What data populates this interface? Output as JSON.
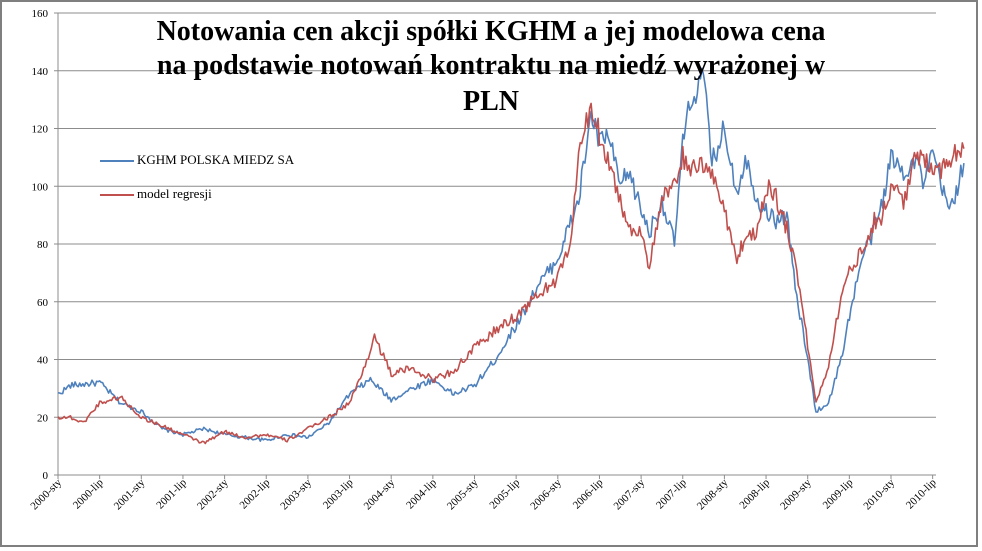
{
  "chart_data": {
    "type": "line",
    "title_lines": [
      "Notowania cen akcji spółki KGHM a jej modelowa cena",
      "na podstawie notowań kontraktu na miedź wyrażonej  w",
      "PLN"
    ],
    "ylim": [
      0,
      160
    ],
    "yticks": [
      "0",
      "20",
      "40",
      "60",
      "80",
      "100",
      "120",
      "140",
      "160"
    ],
    "grid": true,
    "xticks": [
      "2000-sty",
      "2000-lip",
      "2001-sty",
      "2001-lip",
      "2002-sty",
      "2002-lip",
      "2003-sty",
      "2003-lip",
      "2004-sty",
      "2004-lip",
      "2005-sty",
      "2005-lip",
      "2006-sty",
      "2006-lip",
      "2007-sty",
      "2007-lip",
      "2008-sty",
      "2008-lip",
      "2009-sty",
      "2009-lip",
      "2010-sty",
      "2010-lip"
    ],
    "legend_position": "upper-left",
    "series": [
      {
        "name": "KGHM POLSKA MIEDZ SA",
        "color": "#4f81bd",
        "t": [
          0,
          0.3,
          1,
          1.5,
          2,
          2.5,
          3,
          3.5,
          4,
          4.5,
          5,
          5.5,
          6,
          6.5,
          7,
          7.5,
          8,
          8.5,
          9,
          9.5,
          10,
          10.5,
          11,
          11.5,
          12,
          12.2,
          12.5,
          12.8,
          13,
          13.2,
          13.5,
          13.7,
          14,
          14.2,
          14.5,
          14.8,
          15,
          15.2,
          15.5,
          15.7,
          16,
          16.3,
          16.5,
          16.8,
          17,
          17.2,
          17.5,
          17.7,
          18,
          18.2,
          18.5,
          18.8,
          19,
          19.3,
          19.6,
          19.8,
          20,
          20.3,
          20.6,
          20.8,
          21,
          21.2,
          21.4,
          21.6,
          21.75
        ],
        "values": [
          28,
          31,
          32,
          25,
          22,
          16,
          14,
          16,
          14,
          13,
          12,
          14,
          13,
          18,
          28,
          33,
          26,
          30,
          33,
          28,
          31,
          40,
          52,
          65,
          75,
          83,
          95,
          125,
          115,
          118,
          100,
          105,
          92,
          84,
          95,
          80,
          115,
          130,
          138,
          108,
          120,
          98,
          110,
          95,
          92,
          88,
          90,
          65,
          40,
          22,
          25,
          40,
          55,
          75,
          85,
          95,
          110,
          105,
          110,
          100,
          112,
          100,
          92,
          100,
          108
        ]
      },
      {
        "name": "model regresji",
        "color": "#c0504d",
        "t": [
          0,
          0.3,
          0.6,
          1,
          1.5,
          2,
          2.5,
          3,
          3.5,
          4,
          4.5,
          5,
          5.5,
          6,
          6.5,
          7,
          7.3,
          7.6,
          8,
          8.5,
          9,
          9.5,
          10,
          10.5,
          11,
          11.5,
          12,
          12.3,
          12.5,
          12.8,
          13,
          13.2,
          13.5,
          13.7,
          14,
          14.2,
          14.5,
          14.8,
          15,
          15.3,
          15.6,
          16,
          16.3,
          16.5,
          16.8,
          17,
          17.2,
          17.5,
          17.7,
          18,
          18.2,
          18.5,
          18.8,
          19,
          19.3,
          19.6,
          19.8,
          20,
          20.3,
          20.6,
          21,
          21.2,
          21.4,
          21.6,
          21.75
        ],
        "values": [
          20,
          20,
          18,
          25,
          27,
          20,
          17,
          14,
          11,
          15,
          13,
          14,
          12,
          16,
          20,
          25,
          35,
          48,
          35,
          37,
          33,
          36,
          44,
          50,
          55,
          62,
          68,
          80,
          110,
          128,
          118,
          110,
          95,
          85,
          85,
          72,
          95,
          100,
          110,
          105,
          108,
          92,
          75,
          82,
          85,
          100,
          98,
          85,
          75,
          45,
          25,
          38,
          62,
          70,
          78,
          88,
          90,
          100,
          95,
          110,
          108,
          105,
          110,
          112,
          113
        ]
      }
    ]
  }
}
